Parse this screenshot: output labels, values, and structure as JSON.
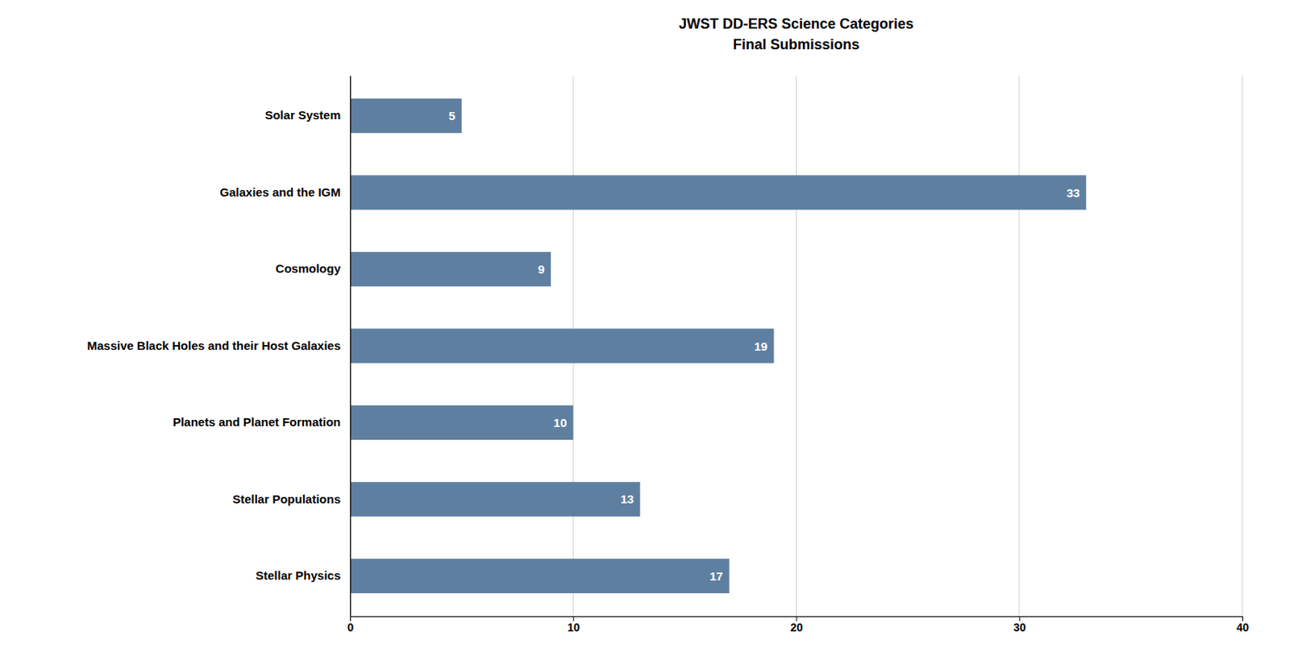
{
  "chart_data": {
    "type": "bar",
    "title": "JWST DD-ERS Science Categories",
    "subtitle": "Final Submissions",
    "categories": [
      "Solar System",
      "Galaxies and the IGM",
      "Cosmology",
      "Massive Black Holes and their Host Galaxies",
      "Planets and Planet Formation",
      "Stellar Populations",
      "Stellar Physics"
    ],
    "values": [
      5,
      33,
      9,
      19,
      10,
      13,
      17
    ],
    "color": "#5f7fa0",
    "orientation": "horizontal",
    "xlim": [
      0,
      40
    ],
    "xticks": [
      0,
      10,
      20,
      30,
      40
    ],
    "grid": true,
    "data_labels": true
  }
}
